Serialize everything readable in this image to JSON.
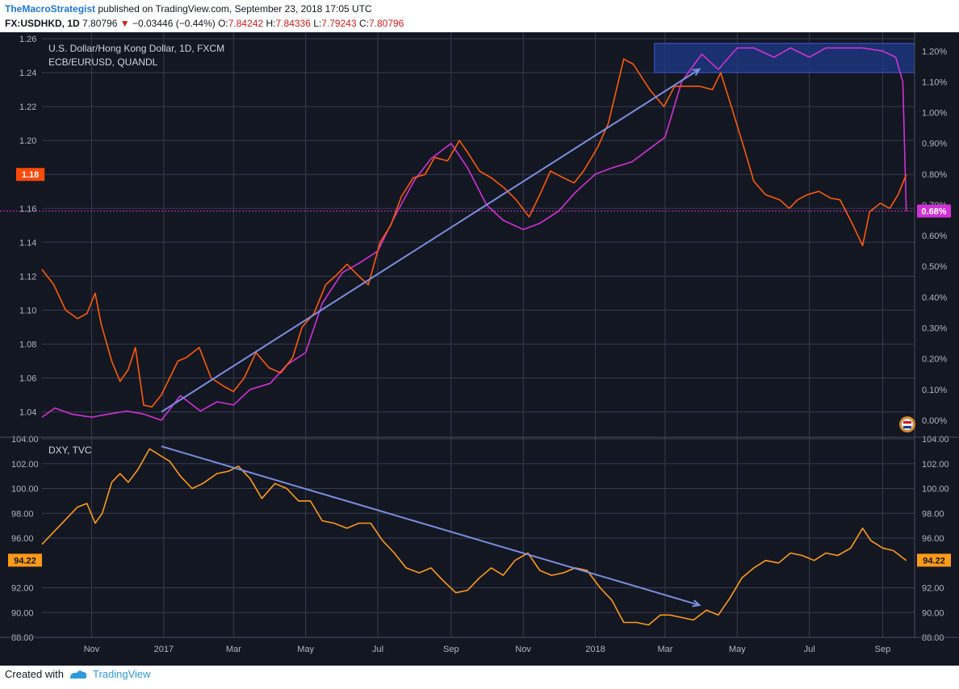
{
  "header": {
    "author": "TheMacroStrategist",
    "published": "published on TradingView.com, September 23, 2018 17:05 UTC",
    "symbol": "FX:USDHKD, 1D",
    "last": "7.80796",
    "change": "−0.03446 (−0.44%)",
    "o_label": "O:",
    "o_value": "7.84242",
    "h_label": "H:",
    "h_value": "7.84336",
    "l_label": "L:",
    "l_value": "7.79243",
    "c_label": "C:",
    "c_value": "7.80796"
  },
  "footer": {
    "created_with": "Created with",
    "brand": "TradingView"
  },
  "colors": {
    "background": "#131722",
    "grid": "#363c4e",
    "axis_text": "#b2b5be",
    "eurusd": "#ff5a0a",
    "ecb": "#d231d6",
    "dxy": "#ff9a1a",
    "trendline": "#7b8ee0",
    "highlight_box": "#1e3a8a"
  },
  "chart_data": [
    {
      "type": "line",
      "legend": [
        "U.S. Dollar/Hong Kong Dollar, 1D, FXCM",
        "ECB/EURUSD, QUANDL"
      ],
      "x_ticks": [
        "Nov",
        "2017",
        "Mar",
        "May",
        "Jul",
        "Sep",
        "Nov",
        "2018",
        "Mar",
        "May",
        "Jul",
        "Sep"
      ],
      "y_left_ticks": [
        "1.26",
        "1.24",
        "1.22",
        "1.20",
        "1.18",
        "1.16",
        "1.14",
        "1.12",
        "1.10",
        "1.08",
        "1.06",
        "1.04"
      ],
      "y_right_ticks": [
        "1.20%",
        "1.10%",
        "1.00%",
        "0.90%",
        "0.80%",
        "0.70%",
        "0.60%",
        "0.50%",
        "0.40%",
        "0.30%",
        "0.20%",
        "0.10%",
        "0.00%"
      ],
      "ylim_left": [
        1.026,
        1.26
      ],
      "ylim_right": [
        -0.0005,
        0.0124
      ],
      "last_left_label": "1.18",
      "last_right_label": "0.68%",
      "series": [
        {
          "color": "#ff5a0a",
          "axis": "left",
          "x": [
            "2016-09-20",
            "2016-09-30",
            "2016-10-10",
            "2016-10-20",
            "2016-10-28",
            "2016-11-04",
            "2016-11-09",
            "2016-11-18",
            "2016-11-25",
            "2016-12-02",
            "2016-12-08",
            "2016-12-15",
            "2016-12-22",
            "2016-12-30",
            "2017-01-06",
            "2017-01-13",
            "2017-01-20",
            "2017-01-31",
            "2017-02-10",
            "2017-02-21",
            "2017-03-01",
            "2017-03-10",
            "2017-03-20",
            "2017-03-31",
            "2017-04-10",
            "2017-04-20",
            "2017-04-28",
            "2017-05-08",
            "2017-05-18",
            "2017-05-26",
            "2017-06-05",
            "2017-06-15",
            "2017-06-23",
            "2017-07-03",
            "2017-07-12",
            "2017-07-21",
            "2017-07-31",
            "2017-08-10",
            "2017-08-18",
            "2017-08-29",
            "2017-09-08",
            "2017-09-15",
            "2017-09-25",
            "2017-10-05",
            "2017-10-16",
            "2017-10-26",
            "2017-11-06",
            "2017-11-15",
            "2017-11-24",
            "2017-12-05",
            "2017-12-14",
            "2017-12-22",
            "2018-01-03",
            "2018-01-12",
            "2018-01-25",
            "2018-02-02",
            "2018-02-16",
            "2018-02-28",
            "2018-03-09",
            "2018-03-20",
            "2018-03-30",
            "2018-04-10",
            "2018-04-17",
            "2018-04-26",
            "2018-05-07",
            "2018-05-15",
            "2018-05-25",
            "2018-06-06",
            "2018-06-14",
            "2018-06-21",
            "2018-06-29",
            "2018-07-09",
            "2018-07-19",
            "2018-07-27",
            "2018-08-07",
            "2018-08-15",
            "2018-08-21",
            "2018-08-30",
            "2018-09-07",
            "2018-09-14",
            "2018-09-21"
          ],
          "values": [
            1.124,
            1.115,
            1.1,
            1.095,
            1.098,
            1.11,
            1.092,
            1.07,
            1.058,
            1.065,
            1.078,
            1.044,
            1.043,
            1.05,
            1.06,
            1.07,
            1.072,
            1.078,
            1.06,
            1.055,
            1.052,
            1.06,
            1.075,
            1.066,
            1.063,
            1.072,
            1.09,
            1.098,
            1.115,
            1.12,
            1.127,
            1.12,
            1.115,
            1.14,
            1.15,
            1.167,
            1.178,
            1.18,
            1.19,
            1.188,
            1.2,
            1.193,
            1.182,
            1.178,
            1.172,
            1.165,
            1.155,
            1.168,
            1.182,
            1.178,
            1.175,
            1.182,
            1.196,
            1.21,
            1.248,
            1.245,
            1.23,
            1.22,
            1.232,
            1.232,
            1.232,
            1.23,
            1.24,
            1.22,
            1.195,
            1.176,
            1.168,
            1.165,
            1.16,
            1.165,
            1.168,
            1.17,
            1.166,
            1.165,
            1.15,
            1.138,
            1.158,
            1.163,
            1.16,
            1.168,
            1.18
          ]
        },
        {
          "color": "#d231d6",
          "axis": "right",
          "x": [
            "2016-09-20",
            "2016-10-01",
            "2016-10-15",
            "2016-11-01",
            "2016-11-15",
            "2016-12-01",
            "2016-12-15",
            "2016-12-30",
            "2017-01-15",
            "2017-02-01",
            "2017-02-15",
            "2017-03-01",
            "2017-03-15",
            "2017-04-01",
            "2017-04-15",
            "2017-05-01",
            "2017-05-15",
            "2017-06-01",
            "2017-06-15",
            "2017-07-01",
            "2017-07-15",
            "2017-08-01",
            "2017-08-15",
            "2017-09-01",
            "2017-09-15",
            "2017-10-01",
            "2017-10-15",
            "2017-11-01",
            "2017-11-15",
            "2017-12-01",
            "2017-12-15",
            "2018-01-01",
            "2018-01-15",
            "2018-02-01",
            "2018-02-15",
            "2018-03-01",
            "2018-03-15",
            "2018-04-01",
            "2018-04-15",
            "2018-05-01",
            "2018-05-15",
            "2018-06-01",
            "2018-06-15",
            "2018-07-01",
            "2018-07-15",
            "2018-08-01",
            "2018-08-15",
            "2018-09-01",
            "2018-09-12",
            "2018-09-18",
            "2018-09-21"
          ],
          "values": [
            0.0001,
            0.0004,
            0.0002,
            0.0001,
            0.0002,
            0.0003,
            0.0002,
            0.0,
            0.0008,
            0.0003,
            0.0006,
            0.0005,
            0.001,
            0.0012,
            0.0018,
            0.0022,
            0.0038,
            0.0048,
            0.0051,
            0.0055,
            0.0066,
            0.0078,
            0.0085,
            0.009,
            0.0082,
            0.007,
            0.0065,
            0.0062,
            0.0064,
            0.0068,
            0.0074,
            0.008,
            0.0082,
            0.0084,
            0.0088,
            0.0092,
            0.011,
            0.0119,
            0.0114,
            0.0121,
            0.0121,
            0.0118,
            0.0121,
            0.0118,
            0.0121,
            0.0121,
            0.0121,
            0.012,
            0.0118,
            0.011,
            0.0068
          ]
        }
      ]
    },
    {
      "type": "line",
      "legend": [
        "DXY, TVC"
      ],
      "x_ticks": [
        "Nov",
        "2017",
        "Mar",
        "May",
        "Jul",
        "Sep",
        "Nov",
        "2018",
        "Mar",
        "May",
        "Jul",
        "Sep"
      ],
      "y_ticks": [
        "104.00",
        "102.00",
        "100.00",
        "98.00",
        "96.00",
        "94.22",
        "92.00",
        "90.00",
        "88.00"
      ],
      "ylim": [
        88.0,
        104.0
      ],
      "last_label": "94.22",
      "series": [
        {
          "color": "#ff9a1a",
          "x": [
            "2016-09-20",
            "2016-09-30",
            "2016-10-10",
            "2016-10-20",
            "2016-10-28",
            "2016-11-04",
            "2016-11-10",
            "2016-11-18",
            "2016-11-25",
            "2016-12-02",
            "2016-12-10",
            "2016-12-20",
            "2016-12-30",
            "2017-01-06",
            "2017-01-15",
            "2017-01-25",
            "2017-02-03",
            "2017-02-15",
            "2017-02-25",
            "2017-03-05",
            "2017-03-15",
            "2017-03-25",
            "2017-04-05",
            "2017-04-15",
            "2017-04-25",
            "2017-05-05",
            "2017-05-15",
            "2017-05-25",
            "2017-06-05",
            "2017-06-15",
            "2017-06-25",
            "2017-07-05",
            "2017-07-15",
            "2017-07-25",
            "2017-08-05",
            "2017-08-15",
            "2017-08-25",
            "2017-09-05",
            "2017-09-15",
            "2017-09-25",
            "2017-10-05",
            "2017-10-15",
            "2017-10-25",
            "2017-11-05",
            "2017-11-15",
            "2017-11-25",
            "2017-12-05",
            "2017-12-15",
            "2017-12-25",
            "2018-01-05",
            "2018-01-15",
            "2018-01-25",
            "2018-02-05",
            "2018-02-15",
            "2018-02-25",
            "2018-03-05",
            "2018-03-15",
            "2018-03-25",
            "2018-04-05",
            "2018-04-15",
            "2018-04-25",
            "2018-05-05",
            "2018-05-15",
            "2018-05-25",
            "2018-06-05",
            "2018-06-15",
            "2018-06-25",
            "2018-07-05",
            "2018-07-15",
            "2018-07-25",
            "2018-08-05",
            "2018-08-15",
            "2018-08-22",
            "2018-09-01",
            "2018-09-10",
            "2018-09-21"
          ],
          "values": [
            95.5,
            96.5,
            97.5,
            98.5,
            98.8,
            97.2,
            98.0,
            100.5,
            101.2,
            100.5,
            101.5,
            103.2,
            102.6,
            102.2,
            101.0,
            100.0,
            100.4,
            101.2,
            101.4,
            101.8,
            100.8,
            99.2,
            100.4,
            100.0,
            99.0,
            99.0,
            97.4,
            97.2,
            96.8,
            97.2,
            97.2,
            95.8,
            94.8,
            93.6,
            93.2,
            93.6,
            92.6,
            91.6,
            91.8,
            92.8,
            93.6,
            93.0,
            94.2,
            94.8,
            93.4,
            93.0,
            93.2,
            93.6,
            93.4,
            92.0,
            91.0,
            89.2,
            89.2,
            89.0,
            89.8,
            89.8,
            89.6,
            89.4,
            90.2,
            89.8,
            91.2,
            92.8,
            93.6,
            94.2,
            94.0,
            94.8,
            94.6,
            94.2,
            94.8,
            94.6,
            95.2,
            96.8,
            95.8,
            95.2,
            95.0,
            94.2
          ]
        }
      ]
    }
  ]
}
